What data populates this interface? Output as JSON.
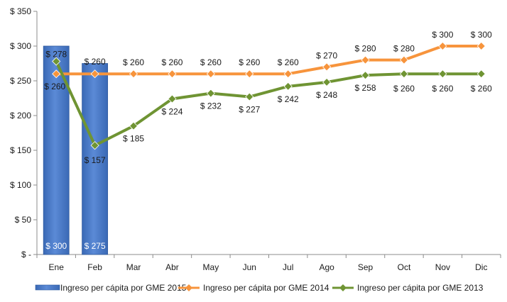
{
  "chart_data": {
    "type": "bar+line",
    "title": "",
    "xlabel": "",
    "ylabel": "",
    "categories": [
      "Ene",
      "Feb",
      "Mar",
      "Abr",
      "May",
      "Jun",
      "Jul",
      "Ago",
      "Sep",
      "Oct",
      "Nov",
      "Dic"
    ],
    "ylim": [
      0,
      350
    ],
    "y_ticks": [
      0,
      50,
      100,
      150,
      200,
      250,
      300,
      350
    ],
    "y_tick_labels": [
      "$ -",
      "$ 50",
      "$ 100",
      "$ 150",
      "$ 200",
      "$ 250",
      "$ 300",
      "$ 350"
    ],
    "grid": false,
    "legend_position": "bottom",
    "series": [
      {
        "name": "Ingreso per cápita por GME 2015",
        "type": "bar",
        "color": "#4a7cc7",
        "values": [
          300,
          275,
          null,
          null,
          null,
          null,
          null,
          null,
          null,
          null,
          null,
          null
        ],
        "data_labels": [
          "$ 300",
          "$ 275",
          "",
          "",
          "",
          "",
          "",
          "",
          "",
          "",
          "",
          ""
        ]
      },
      {
        "name": "Ingreso per cápita por GME 2014",
        "type": "line",
        "color": "#f7943c",
        "values": [
          260,
          260,
          260,
          260,
          260,
          260,
          260,
          270,
          280,
          280,
          300,
          300
        ],
        "data_labels": [
          "$ 260",
          "$ 260",
          "$ 260",
          "$ 260",
          "$ 260",
          "$ 260",
          "$ 260",
          "$ 270",
          "$ 280",
          "$ 280",
          "$ 300",
          "$ 300"
        ]
      },
      {
        "name": "Ingreso per cápita por GME 2013",
        "type": "line",
        "color": "#6f9433",
        "values": [
          278,
          157,
          185,
          224,
          232,
          227,
          242,
          248,
          258,
          260,
          260,
          260
        ],
        "data_labels": [
          "$ 278",
          "$ 157",
          "$ 185",
          "$ 224",
          "$ 232",
          "$ 227",
          "$ 242",
          "$ 248",
          "$ 258",
          "$ 260",
          "$ 260",
          "$ 260"
        ]
      }
    ]
  }
}
